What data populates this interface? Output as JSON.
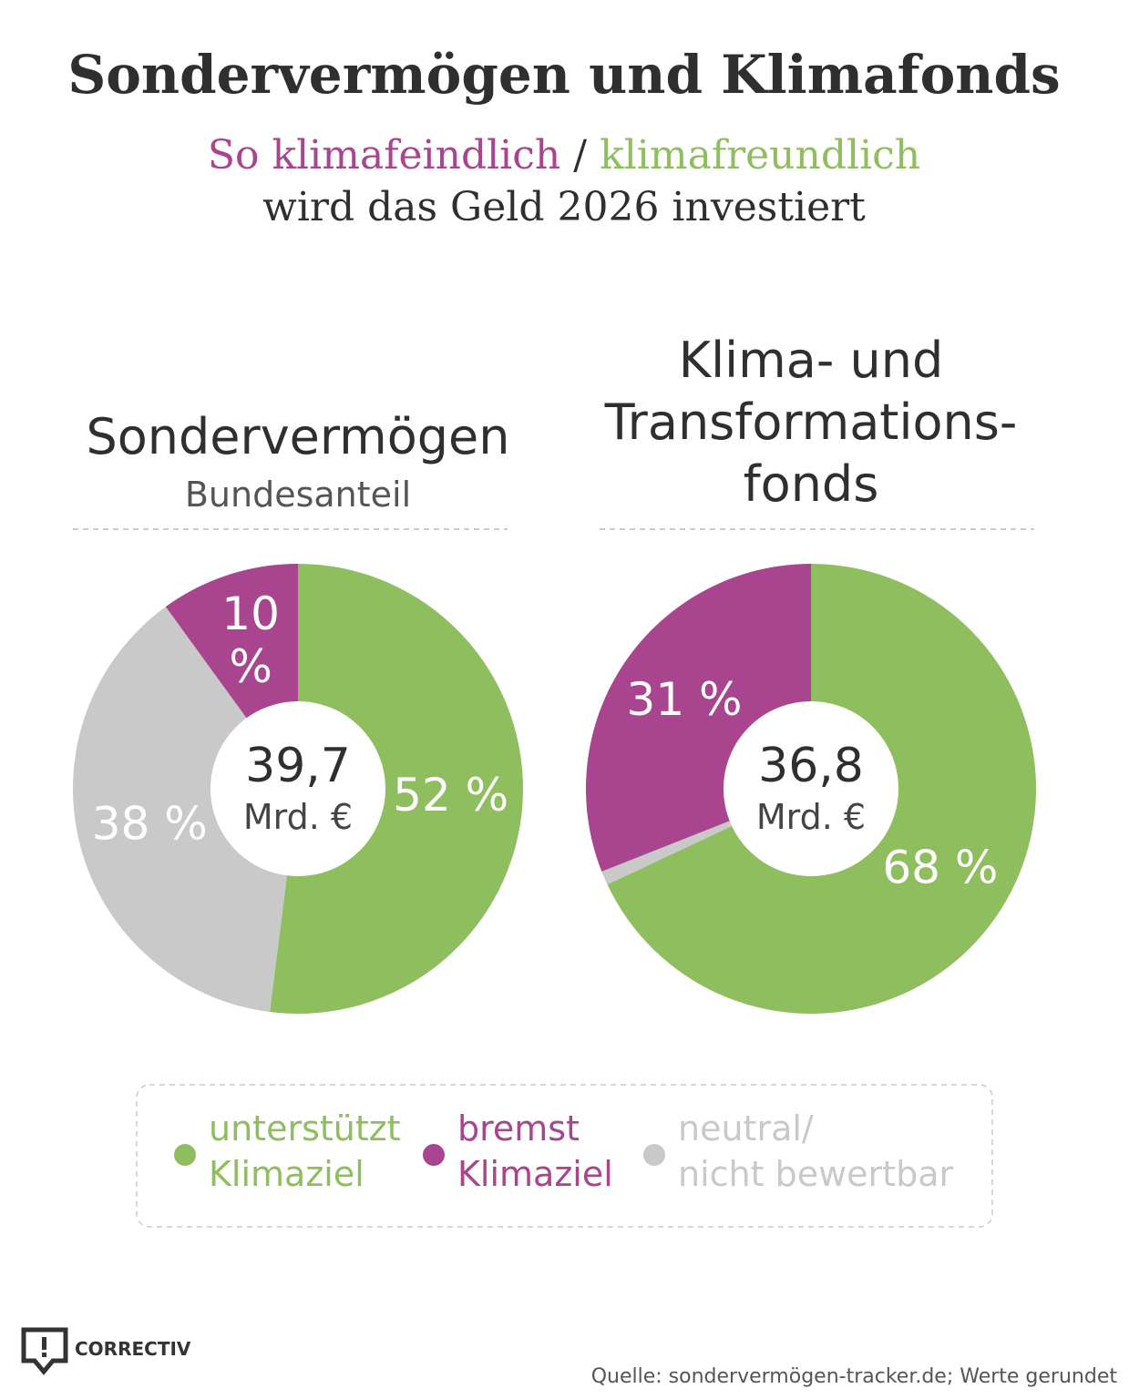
{
  "title": "Sondervermögen und Klimafonds",
  "subtitle": {
    "negative": "So klimafeindlich",
    "separator": "/",
    "positive": "klimafreundlich",
    "rest": "wird das Geld 2026 investiert"
  },
  "chart_data": [
    {
      "type": "donut",
      "title_lines": [
        "Sondervermögen"
      ],
      "subtitle": "Bundesanteil",
      "total": {
        "value": 39.7,
        "label": "39,7"
      },
      "total_unit": "Mrd. €",
      "values": [
        52,
        38,
        10
      ],
      "value_labels": [
        "52 %",
        "38 %",
        "10 %"
      ],
      "colors": [
        "#8fbe5f",
        "#c9c9c9",
        "#a8458e"
      ]
    },
    {
      "type": "donut",
      "title_lines": [
        "Klima- und",
        "Transformations-",
        "fonds"
      ],
      "total": {
        "value": 36.8,
        "label": "36,8"
      },
      "total_unit": "Mrd. €",
      "values": [
        68,
        1,
        31
      ],
      "value_labels": [
        "68 %",
        null,
        "31 %"
      ],
      "colors": [
        "#8fbe5f",
        "#c9c9c9",
        "#a8458e"
      ]
    }
  ],
  "legend": [
    {
      "lines": [
        "unterstützt",
        "Klimaziel"
      ],
      "color": "#8fbe5f"
    },
    {
      "lines": [
        "bremst",
        "Klimaziel"
      ],
      "color": "#a8458e"
    },
    {
      "lines": [
        "neutral/",
        "nicht bewertbar"
      ],
      "color": "#c9c9c9"
    }
  ],
  "footer": {
    "brand": "CORRECTIV",
    "source": "Quelle: sondervermögen-tracker.de; Werte gerundet"
  }
}
